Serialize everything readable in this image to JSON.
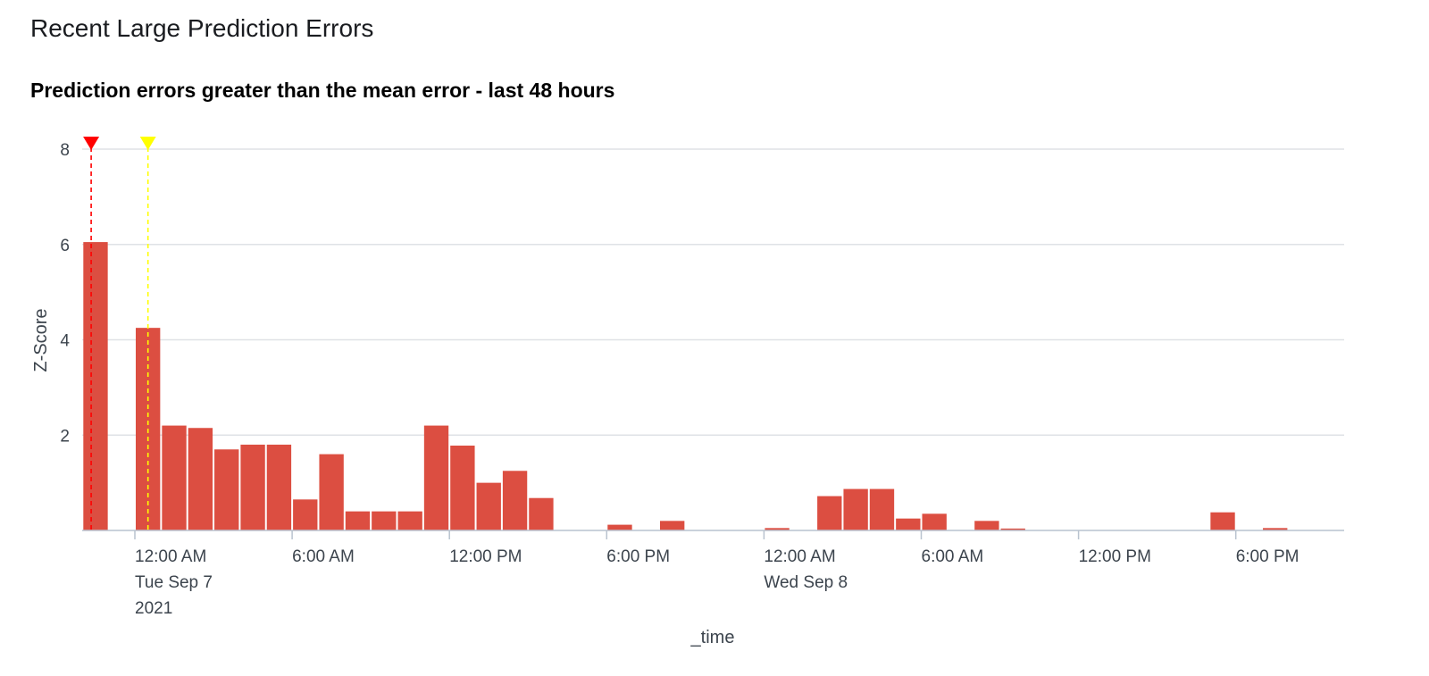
{
  "panel": {
    "title": "Recent Large Prediction Errors"
  },
  "chart_data": {
    "type": "bar",
    "title": "Prediction errors greater than the mean error - last 48 hours",
    "xlabel": "_time",
    "ylabel": "Z-Score",
    "ylim": [
      0,
      8
    ],
    "y_ticks": [
      "2",
      "4",
      "6",
      "8"
    ],
    "x_tick_labels": [
      {
        "time": "2021-09-07 00:00",
        "lines": [
          "12:00 AM",
          "Tue Sep 7",
          "2021"
        ]
      },
      {
        "time": "2021-09-07 06:00",
        "lines": [
          "6:00 AM"
        ]
      },
      {
        "time": "2021-09-07 12:00",
        "lines": [
          "12:00 PM"
        ]
      },
      {
        "time": "2021-09-07 18:00",
        "lines": [
          "6:00 PM"
        ]
      },
      {
        "time": "2021-09-08 00:00",
        "lines": [
          "12:00 AM",
          "Wed Sep 8"
        ]
      },
      {
        "time": "2021-09-08 06:00",
        "lines": [
          "6:00 AM"
        ]
      },
      {
        "time": "2021-09-08 12:00",
        "lines": [
          "12:00 PM"
        ]
      },
      {
        "time": "2021-09-08 18:00",
        "lines": [
          "6:00 PM"
        ]
      }
    ],
    "bar_interval": "1 hour",
    "series": [
      {
        "color": "#dc4e41",
        "points": [
          {
            "time": "2021-09-06 22:00",
            "value": 6.05
          },
          {
            "time": "2021-09-07 00:00",
            "value": 4.25
          },
          {
            "time": "2021-09-07 01:00",
            "value": 2.2
          },
          {
            "time": "2021-09-07 02:00",
            "value": 2.15
          },
          {
            "time": "2021-09-07 03:00",
            "value": 1.7
          },
          {
            "time": "2021-09-07 04:00",
            "value": 1.8
          },
          {
            "time": "2021-09-07 05:00",
            "value": 1.8
          },
          {
            "time": "2021-09-07 06:00",
            "value": 0.65
          },
          {
            "time": "2021-09-07 07:00",
            "value": 1.6
          },
          {
            "time": "2021-09-07 08:00",
            "value": 0.4
          },
          {
            "time": "2021-09-07 09:00",
            "value": 0.4
          },
          {
            "time": "2021-09-07 10:00",
            "value": 0.4
          },
          {
            "time": "2021-09-07 11:00",
            "value": 2.2
          },
          {
            "time": "2021-09-07 12:00",
            "value": 1.78
          },
          {
            "time": "2021-09-07 13:00",
            "value": 1.0
          },
          {
            "time": "2021-09-07 14:00",
            "value": 1.25
          },
          {
            "time": "2021-09-07 15:00",
            "value": 0.68
          },
          {
            "time": "2021-09-07 18:00",
            "value": 0.12
          },
          {
            "time": "2021-09-07 20:00",
            "value": 0.2
          },
          {
            "time": "2021-09-08 00:00",
            "value": 0.05
          },
          {
            "time": "2021-09-08 02:00",
            "value": 0.72
          },
          {
            "time": "2021-09-08 03:00",
            "value": 0.87
          },
          {
            "time": "2021-09-08 04:00",
            "value": 0.87
          },
          {
            "time": "2021-09-08 05:00",
            "value": 0.25
          },
          {
            "time": "2021-09-08 06:00",
            "value": 0.35
          },
          {
            "time": "2021-09-08 08:00",
            "value": 0.2
          },
          {
            "time": "2021-09-08 09:00",
            "value": 0.04
          },
          {
            "time": "2021-09-08 17:00",
            "value": 0.38
          },
          {
            "time": "2021-09-08 19:00",
            "value": 0.05
          }
        ]
      }
    ],
    "annotations": [
      {
        "time": "2021-09-06 22:20",
        "color": "#ff0000",
        "marker": "triangle-down"
      },
      {
        "time": "2021-09-07 00:30",
        "color": "#ffff00",
        "marker": "triangle-down"
      }
    ],
    "grid": true,
    "legend": "none"
  }
}
